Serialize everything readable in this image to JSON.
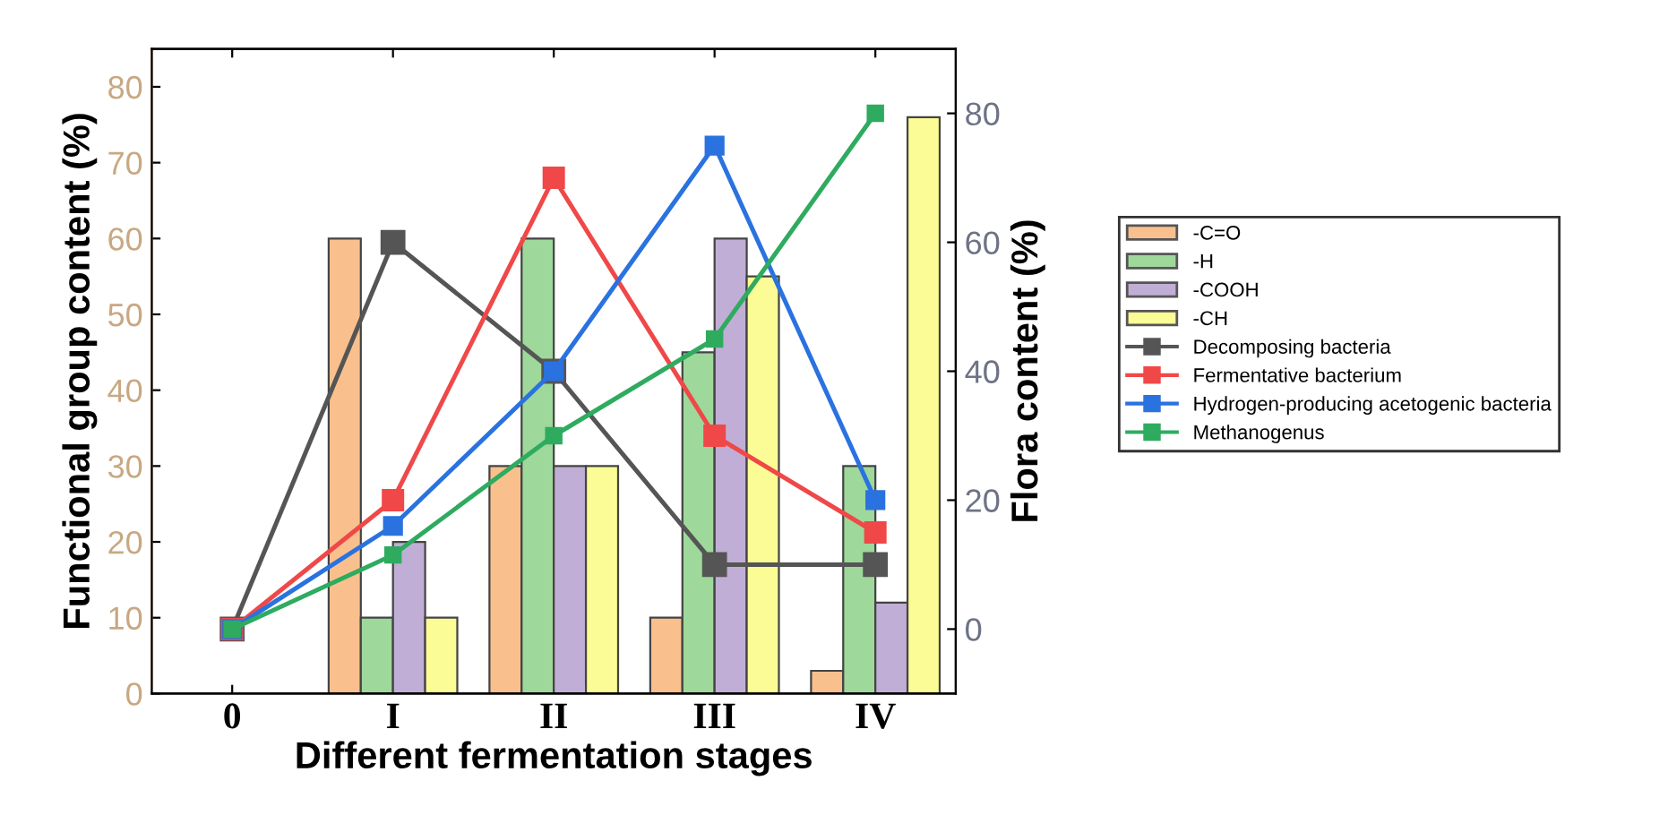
{
  "chart_data": {
    "type": "bar",
    "xlabel": "Different fermentation stages",
    "ylabel": "Functional group content (%)",
    "y2label": "Flora content (%)",
    "categories": [
      "0",
      "I",
      "II",
      "III",
      "IV"
    ],
    "series": [
      {
        "name": "-C=O",
        "color": "#f9c08e",
        "values": [
          null,
          60,
          30,
          10,
          3
        ]
      },
      {
        "name": "-H",
        "color": "#9ed89b",
        "values": [
          null,
          10,
          60,
          45,
          30
        ]
      },
      {
        "name": "-COOH",
        "color": "#c1aed6",
        "values": [
          null,
          20,
          30,
          60,
          12
        ]
      },
      {
        "name": "-CH",
        "color": "#fcfc96",
        "values": [
          null,
          10,
          30,
          55,
          76
        ]
      },
      {
        "name": "Decomposing bacteria",
        "type": "line",
        "axis": "y2",
        "color": "#555555",
        "values": [
          0,
          60,
          40,
          10,
          10
        ]
      },
      {
        "name": "Fermentative bacterium",
        "type": "line",
        "axis": "y2",
        "color": "#f04848",
        "values": [
          0,
          20,
          70,
          30,
          15
        ]
      },
      {
        "name": "Hydrogen-producing acetogenic bacteria",
        "type": "line",
        "axis": "y2",
        "color": "#2a72e0",
        "values": [
          0,
          16,
          40,
          75,
          20
        ]
      },
      {
        "name": "Methanogenus",
        "type": "line",
        "axis": "y2",
        "color": "#2eab5f",
        "values": [
          0,
          11.5,
          30,
          45,
          80
        ]
      }
    ],
    "ylim": [
      0,
      85
    ],
    "yticks": [
      0,
      10,
      20,
      30,
      40,
      50,
      60,
      70,
      80
    ],
    "y2lim": [
      -10,
      90
    ],
    "y2ticks": [
      0,
      20,
      40,
      60,
      80
    ],
    "marker": "square",
    "legend": "right",
    "grid": false
  }
}
